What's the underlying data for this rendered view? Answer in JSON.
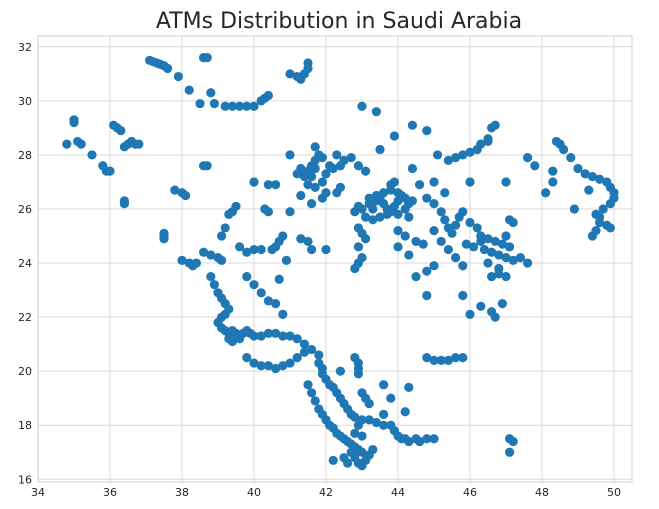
{
  "chart_data": {
    "type": "scatter",
    "title": "ATMs Distribution in Saudi Arabia",
    "xlabel": "",
    "ylabel": "",
    "xlim": [
      34,
      50.5
    ],
    "ylim": [
      15.9,
      32.4
    ],
    "xticks": [
      34,
      36,
      38,
      40,
      42,
      44,
      46,
      48,
      50
    ],
    "yticks": [
      16,
      18,
      20,
      22,
      24,
      26,
      28,
      30,
      32
    ],
    "grid": true,
    "marker_color": "#1f77b4",
    "points": [
      [
        34.8,
        28.4
      ],
      [
        35.0,
        29.3
      ],
      [
        35.0,
        29.2
      ],
      [
        35.1,
        28.5
      ],
      [
        35.2,
        28.4
      ],
      [
        35.5,
        28.0
      ],
      [
        35.8,
        27.6
      ],
      [
        35.9,
        27.4
      ],
      [
        36.0,
        27.4
      ],
      [
        36.1,
        29.1
      ],
      [
        36.2,
        29.0
      ],
      [
        36.3,
        28.9
      ],
      [
        36.4,
        28.3
      ],
      [
        36.5,
        28.4
      ],
      [
        36.6,
        28.5
      ],
      [
        36.7,
        28.4
      ],
      [
        36.8,
        28.4
      ],
      [
        36.4,
        26.3
      ],
      [
        36.4,
        26.2
      ],
      [
        37.1,
        31.5
      ],
      [
        37.2,
        31.45
      ],
      [
        37.3,
        31.4
      ],
      [
        37.4,
        31.35
      ],
      [
        37.5,
        31.3
      ],
      [
        37.6,
        31.2
      ],
      [
        37.9,
        30.9
      ],
      [
        38.2,
        30.4
      ],
      [
        38.5,
        29.9
      ],
      [
        38.9,
        29.9
      ],
      [
        38.6,
        31.6
      ],
      [
        38.7,
        31.6
      ],
      [
        38.8,
        30.3
      ],
      [
        39.2,
        29.8
      ],
      [
        39.4,
        29.8
      ],
      [
        39.6,
        29.8
      ],
      [
        39.8,
        29.8
      ],
      [
        40.0,
        29.8
      ],
      [
        40.2,
        30.0
      ],
      [
        40.3,
        30.1
      ],
      [
        40.4,
        30.2
      ],
      [
        41.0,
        31.0
      ],
      [
        41.2,
        30.9
      ],
      [
        41.3,
        30.8
      ],
      [
        41.4,
        31.0
      ],
      [
        41.5,
        31.2
      ],
      [
        41.5,
        31.4
      ],
      [
        37.8,
        26.7
      ],
      [
        38.0,
        26.6
      ],
      [
        38.1,
        26.5
      ],
      [
        38.6,
        27.6
      ],
      [
        38.7,
        27.6
      ],
      [
        37.5,
        25.1
      ],
      [
        37.5,
        24.9
      ],
      [
        37.5,
        25.0
      ],
      [
        38.0,
        24.1
      ],
      [
        38.2,
        24.0
      ],
      [
        38.3,
        23.9
      ],
      [
        38.4,
        24.0
      ],
      [
        38.6,
        24.4
      ],
      [
        38.8,
        24.3
      ],
      [
        39.0,
        24.2
      ],
      [
        39.1,
        24.1
      ],
      [
        39.1,
        25.0
      ],
      [
        39.2,
        25.3
      ],
      [
        39.3,
        25.8
      ],
      [
        39.4,
        25.9
      ],
      [
        39.5,
        26.1
      ],
      [
        39.6,
        24.6
      ],
      [
        39.8,
        24.4
      ],
      [
        40.0,
        24.5
      ],
      [
        40.2,
        24.5
      ],
      [
        40.5,
        24.5
      ],
      [
        40.6,
        24.6
      ],
      [
        40.7,
        24.8
      ],
      [
        40.8,
        25.0
      ],
      [
        39.8,
        23.5
      ],
      [
        40.0,
        23.2
      ],
      [
        40.2,
        22.9
      ],
      [
        40.4,
        22.6
      ],
      [
        40.6,
        22.5
      ],
      [
        40.8,
        22.1
      ],
      [
        38.8,
        23.5
      ],
      [
        38.9,
        23.2
      ],
      [
        39.0,
        22.9
      ],
      [
        39.1,
        22.7
      ],
      [
        39.2,
        22.5
      ],
      [
        39.3,
        22.3
      ],
      [
        39.2,
        22.1
      ],
      [
        39.1,
        22.0
      ],
      [
        39.0,
        21.8
      ],
      [
        39.1,
        21.6
      ],
      [
        39.2,
        21.5
      ],
      [
        39.3,
        21.4
      ],
      [
        39.4,
        21.5
      ],
      [
        39.5,
        21.4
      ],
      [
        39.6,
        21.3
      ],
      [
        39.7,
        21.4
      ],
      [
        39.8,
        21.5
      ],
      [
        39.9,
        21.4
      ],
      [
        40.0,
        21.3
      ],
      [
        40.2,
        21.3
      ],
      [
        40.4,
        21.4
      ],
      [
        40.6,
        21.4
      ],
      [
        40.8,
        21.3
      ],
      [
        41.0,
        21.3
      ],
      [
        39.3,
        21.2
      ],
      [
        39.4,
        21.1
      ],
      [
        39.6,
        21.2
      ],
      [
        39.8,
        20.5
      ],
      [
        40.0,
        20.3
      ],
      [
        40.2,
        20.2
      ],
      [
        40.4,
        20.2
      ],
      [
        40.6,
        20.1
      ],
      [
        40.8,
        20.2
      ],
      [
        41.0,
        20.3
      ],
      [
        41.2,
        20.5
      ],
      [
        41.4,
        20.7
      ],
      [
        41.2,
        21.2
      ],
      [
        41.4,
        21.0
      ],
      [
        41.6,
        20.8
      ],
      [
        41.8,
        20.6
      ],
      [
        41.8,
        20.3
      ],
      [
        41.9,
        20.1
      ],
      [
        41.9,
        19.9
      ],
      [
        42.0,
        19.7
      ],
      [
        42.1,
        19.5
      ],
      [
        42.2,
        19.4
      ],
      [
        42.3,
        19.2
      ],
      [
        42.4,
        19.0
      ],
      [
        42.5,
        18.8
      ],
      [
        42.6,
        18.6
      ],
      [
        42.7,
        18.4
      ],
      [
        42.8,
        18.3
      ],
      [
        43.0,
        18.2
      ],
      [
        43.2,
        18.2
      ],
      [
        43.4,
        18.1
      ],
      [
        43.6,
        18.0
      ],
      [
        41.5,
        19.5
      ],
      [
        41.6,
        19.2
      ],
      [
        41.7,
        18.9
      ],
      [
        41.8,
        18.6
      ],
      [
        41.9,
        18.4
      ],
      [
        42.0,
        18.2
      ],
      [
        42.1,
        18.0
      ],
      [
        42.2,
        17.9
      ],
      [
        42.3,
        17.7
      ],
      [
        42.4,
        17.6
      ],
      [
        42.5,
        17.5
      ],
      [
        42.6,
        17.4
      ],
      [
        42.7,
        17.3
      ],
      [
        42.8,
        17.2
      ],
      [
        42.9,
        17.1
      ],
      [
        43.0,
        17.0
      ],
      [
        42.7,
        17.0
      ],
      [
        42.8,
        16.8
      ],
      [
        42.9,
        16.6
      ],
      [
        43.0,
        16.5
      ],
      [
        43.1,
        16.7
      ],
      [
        43.2,
        16.9
      ],
      [
        43.3,
        17.1
      ],
      [
        42.5,
        16.8
      ],
      [
        42.6,
        16.6
      ],
      [
        42.2,
        16.7
      ],
      [
        42.9,
        18.0
      ],
      [
        42.8,
        17.7
      ],
      [
        43.0,
        17.6
      ],
      [
        42.8,
        20.5
      ],
      [
        42.9,
        20.3
      ],
      [
        42.9,
        20.1
      ],
      [
        42.9,
        19.9
      ],
      [
        42.4,
        20.0
      ],
      [
        43.0,
        19.2
      ],
      [
        43.1,
        19.0
      ],
      [
        43.2,
        18.8
      ],
      [
        43.6,
        18.4
      ],
      [
        43.8,
        18.0
      ],
      [
        43.9,
        17.8
      ],
      [
        44.0,
        17.6
      ],
      [
        44.1,
        17.5
      ],
      [
        44.2,
        17.5
      ],
      [
        44.3,
        17.4
      ],
      [
        44.5,
        17.5
      ],
      [
        44.6,
        17.4
      ],
      [
        44.8,
        17.5
      ],
      [
        45.0,
        17.5
      ],
      [
        44.2,
        18.5
      ],
      [
        43.8,
        19.0
      ],
      [
        43.6,
        19.5
      ],
      [
        44.3,
        19.4
      ],
      [
        40.0,
        27.0
      ],
      [
        40.4,
        26.9
      ],
      [
        40.6,
        26.9
      ],
      [
        40.3,
        26.0
      ],
      [
        40.4,
        25.9
      ],
      [
        41.0,
        25.9
      ],
      [
        41.3,
        24.9
      ],
      [
        41.5,
        24.8
      ],
      [
        41.6,
        24.5
      ],
      [
        42.0,
        24.5
      ],
      [
        40.9,
        24.1
      ],
      [
        40.7,
        23.4
      ],
      [
        41.0,
        28.0
      ],
      [
        41.3,
        27.5
      ],
      [
        41.2,
        27.3
      ],
      [
        41.4,
        27.2
      ],
      [
        41.5,
        27.4
      ],
      [
        41.6,
        27.6
      ],
      [
        41.7,
        27.8
      ],
      [
        41.8,
        28.0
      ],
      [
        41.9,
        27.9
      ],
      [
        41.7,
        27.5
      ],
      [
        41.6,
        27.2
      ],
      [
        41.5,
        26.9
      ],
      [
        41.7,
        26.8
      ],
      [
        41.9,
        27.0
      ],
      [
        42.0,
        27.3
      ],
      [
        42.1,
        27.6
      ],
      [
        42.2,
        27.5
      ],
      [
        42.4,
        27.6
      ],
      [
        42.5,
        27.8
      ],
      [
        42.7,
        27.9
      ],
      [
        42.9,
        27.6
      ],
      [
        43.1,
        27.4
      ],
      [
        42.3,
        26.6
      ],
      [
        42.4,
        26.8
      ],
      [
        42.0,
        26.6
      ],
      [
        41.9,
        26.4
      ],
      [
        41.6,
        26.2
      ],
      [
        41.3,
        26.5
      ],
      [
        41.7,
        28.3
      ],
      [
        42.3,
        28.0
      ],
      [
        43.0,
        29.8
      ],
      [
        43.4,
        29.6
      ],
      [
        43.9,
        28.7
      ],
      [
        44.4,
        29.1
      ],
      [
        44.8,
        28.9
      ],
      [
        43.5,
        28.2
      ],
      [
        43.2,
        26.2
      ],
      [
        43.3,
        26.0
      ],
      [
        43.4,
        26.3
      ],
      [
        43.5,
        26.4
      ],
      [
        43.6,
        26.2
      ],
      [
        43.7,
        26.0
      ],
      [
        43.8,
        25.9
      ],
      [
        43.9,
        26.1
      ],
      [
        44.0,
        26.3
      ],
      [
        44.1,
        26.5
      ],
      [
        44.2,
        26.4
      ],
      [
        44.0,
        26.6
      ],
      [
        43.8,
        26.7
      ],
      [
        43.6,
        26.6
      ],
      [
        43.4,
        26.5
      ],
      [
        43.2,
        26.4
      ],
      [
        43.0,
        26.0
      ],
      [
        42.9,
        26.1
      ],
      [
        42.8,
        25.9
      ],
      [
        43.1,
        25.7
      ],
      [
        43.3,
        25.6
      ],
      [
        43.5,
        25.7
      ],
      [
        43.7,
        25.8
      ],
      [
        44.2,
        26.0
      ],
      [
        44.3,
        26.2
      ],
      [
        44.4,
        26.3
      ],
      [
        44.0,
        25.8
      ],
      [
        44.3,
        25.7
      ],
      [
        43.9,
        27.0
      ],
      [
        43.8,
        26.9
      ],
      [
        42.9,
        25.3
      ],
      [
        43.0,
        25.1
      ],
      [
        43.1,
        24.9
      ],
      [
        42.9,
        24.6
      ],
      [
        43.0,
        24.2
      ],
      [
        42.9,
        24.0
      ],
      [
        42.8,
        23.8
      ],
      [
        44.0,
        25.2
      ],
      [
        44.2,
        25.0
      ],
      [
        44.5,
        24.8
      ],
      [
        44.7,
        24.7
      ],
      [
        44.0,
        24.6
      ],
      [
        44.3,
        24.3
      ],
      [
        44.5,
        23.5
      ],
      [
        44.8,
        23.7
      ],
      [
        45.0,
        23.9
      ],
      [
        44.4,
        27.5
      ],
      [
        44.6,
        26.9
      ],
      [
        44.8,
        26.4
      ],
      [
        45.0,
        26.2
      ],
      [
        45.2,
        25.9
      ],
      [
        45.3,
        25.6
      ],
      [
        45.4,
        25.3
      ],
      [
        45.5,
        25.1
      ],
      [
        45.6,
        25.4
      ],
      [
        45.7,
        25.7
      ],
      [
        45.8,
        25.9
      ],
      [
        46.0,
        25.5
      ],
      [
        46.2,
        25.3
      ],
      [
        46.3,
        25.0
      ],
      [
        45.0,
        25.2
      ],
      [
        45.2,
        24.8
      ],
      [
        45.4,
        24.5
      ],
      [
        45.6,
        24.2
      ],
      [
        45.8,
        23.9
      ],
      [
        45.3,
        26.6
      ],
      [
        45.0,
        27.0
      ],
      [
        45.1,
        28.0
      ],
      [
        45.4,
        27.8
      ],
      [
        45.6,
        27.9
      ],
      [
        45.8,
        28.0
      ],
      [
        46.0,
        28.1
      ],
      [
        46.2,
        28.2
      ],
      [
        46.3,
        28.4
      ],
      [
        46.5,
        28.5
      ],
      [
        46.6,
        29.0
      ],
      [
        46.7,
        29.1
      ],
      [
        46.5,
        28.6
      ],
      [
        46.0,
        27.0
      ],
      [
        45.9,
        24.7
      ],
      [
        46.1,
        24.6
      ],
      [
        46.3,
        24.8
      ],
      [
        46.5,
        24.9
      ],
      [
        46.7,
        24.8
      ],
      [
        46.9,
        24.7
      ],
      [
        47.1,
        24.6
      ],
      [
        46.4,
        24.5
      ],
      [
        46.6,
        24.4
      ],
      [
        46.8,
        24.3
      ],
      [
        47.0,
        24.2
      ],
      [
        47.2,
        24.1
      ],
      [
        47.4,
        24.2
      ],
      [
        47.6,
        24.0
      ],
      [
        46.5,
        24.0
      ],
      [
        46.8,
        23.8
      ],
      [
        46.8,
        23.6
      ],
      [
        47.0,
        23.5
      ],
      [
        46.6,
        23.5
      ],
      [
        47.0,
        25.0
      ],
      [
        47.2,
        25.5
      ],
      [
        47.1,
        25.6
      ],
      [
        45.8,
        22.8
      ],
      [
        46.0,
        22.1
      ],
      [
        46.3,
        22.4
      ],
      [
        46.6,
        22.2
      ],
      [
        46.7,
        22.0
      ],
      [
        46.9,
        22.5
      ],
      [
        44.8,
        20.5
      ],
      [
        45.0,
        20.4
      ],
      [
        45.2,
        20.4
      ],
      [
        45.4,
        20.4
      ],
      [
        45.6,
        20.5
      ],
      [
        45.8,
        20.5
      ],
      [
        44.8,
        22.8
      ],
      [
        47.1,
        17.5
      ],
      [
        47.2,
        17.4
      ],
      [
        47.1,
        17.0
      ],
      [
        47.0,
        27.0
      ],
      [
        47.6,
        27.9
      ],
      [
        47.8,
        27.6
      ],
      [
        48.1,
        26.6
      ],
      [
        48.3,
        27.0
      ],
      [
        48.3,
        27.4
      ],
      [
        48.4,
        28.5
      ],
      [
        48.5,
        28.4
      ],
      [
        48.6,
        28.2
      ],
      [
        48.8,
        27.9
      ],
      [
        49.0,
        27.5
      ],
      [
        49.2,
        27.3
      ],
      [
        49.4,
        27.2
      ],
      [
        49.6,
        27.1
      ],
      [
        49.8,
        27.0
      ],
      [
        49.9,
        26.8
      ],
      [
        50.0,
        26.6
      ],
      [
        50.0,
        26.4
      ],
      [
        49.9,
        26.2
      ],
      [
        49.7,
        26.0
      ],
      [
        49.5,
        25.8
      ],
      [
        49.6,
        25.5
      ],
      [
        49.8,
        25.4
      ],
      [
        49.9,
        25.3
      ],
      [
        49.5,
        25.2
      ],
      [
        49.4,
        25.0
      ],
      [
        49.6,
        25.7
      ],
      [
        48.9,
        26.0
      ],
      [
        49.3,
        26.7
      ]
    ]
  }
}
